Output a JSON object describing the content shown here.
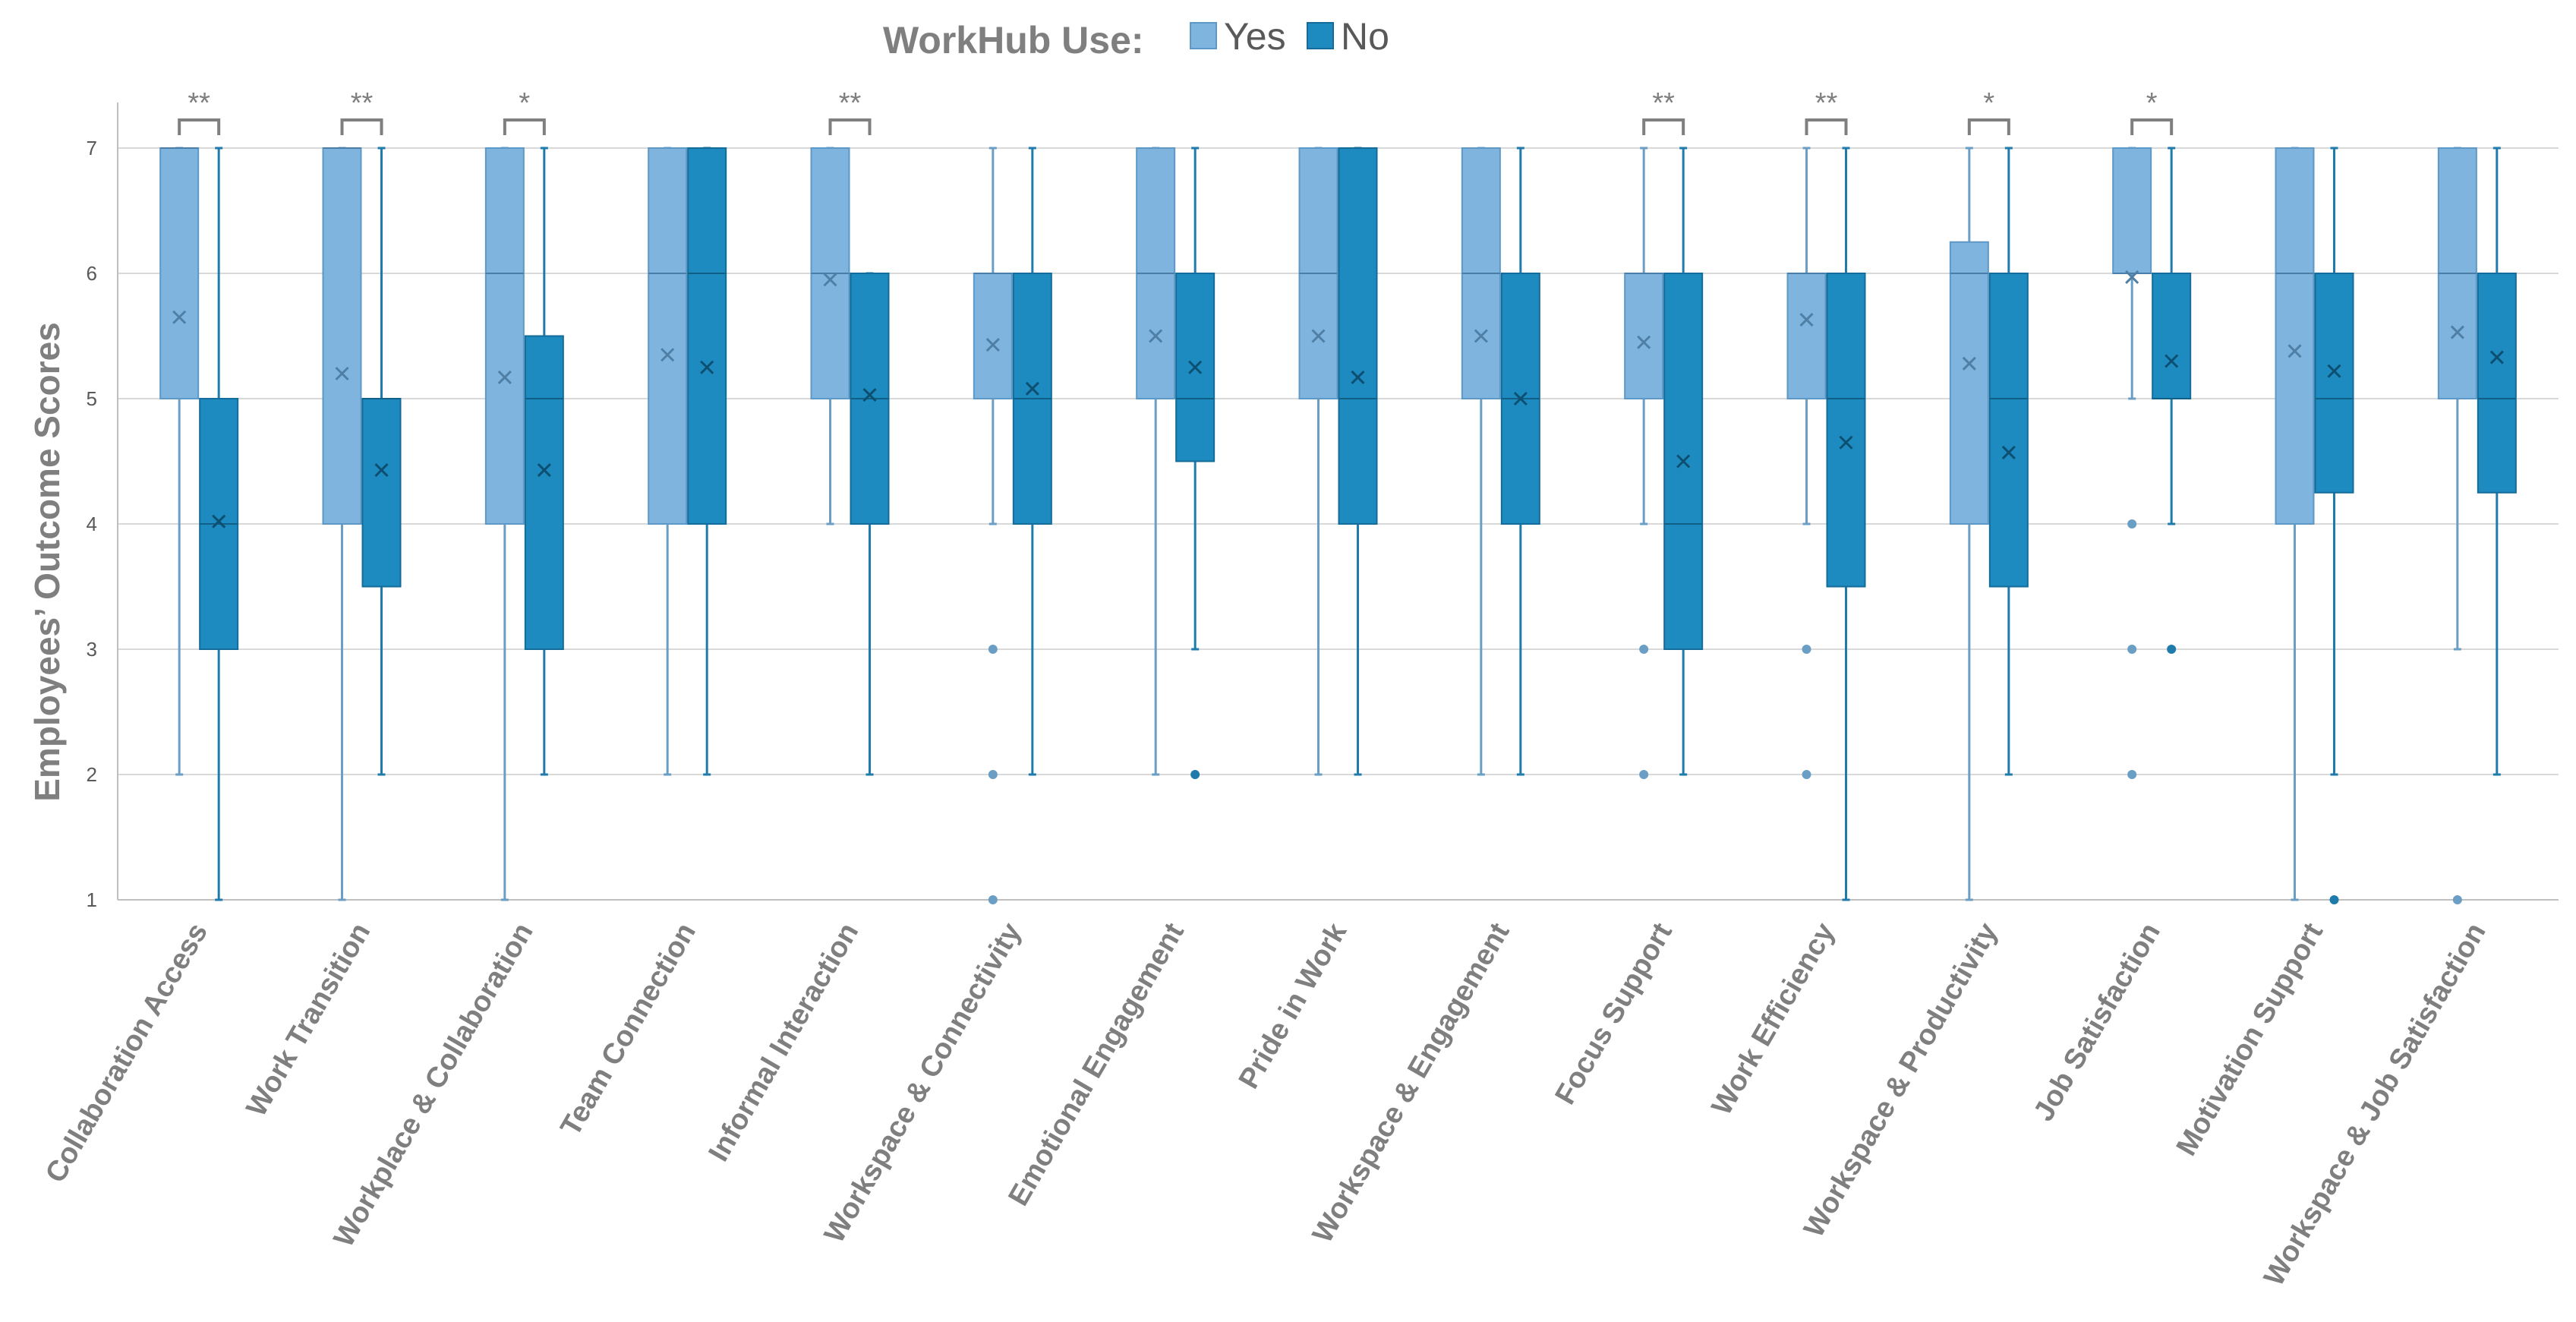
{
  "chart_data": {
    "type": "box",
    "title": "",
    "legend": {
      "title": "WorkHub Use:",
      "position": "top-center",
      "entries": [
        {
          "name": "Yes",
          "color": "#7fb4df"
        },
        {
          "name": "No",
          "color": "#1d8ac0"
        }
      ]
    },
    "xlabel": "",
    "ylabel": "Employees’ Outcome Scores",
    "ylim": [
      1,
      7
    ],
    "yticks": [
      "1",
      "2",
      "3",
      "4",
      "5",
      "6",
      "7"
    ],
    "grid": true,
    "categories": [
      "Collaboration Access",
      "Work Transition",
      "Workplace & Collaboration",
      "Team Connection",
      "Informal Interaction",
      "Workspace & Connectivity",
      "Emotional Engagement",
      "Pride in Work",
      "Workspace & Engagement",
      "Focus Support",
      "Work Efficiency",
      "Workspace & Productivity",
      "Job Satisfaction",
      "Motivation Support",
      "Workspace & Job Satisfaction"
    ],
    "significance": [
      "**",
      "**",
      "*",
      "",
      "**",
      "",
      "",
      "",
      "",
      "**",
      "**",
      "*",
      "*",
      "",
      ""
    ],
    "series": [
      {
        "name": "Yes",
        "boxes": [
          {
            "whisker_low": 2,
            "q1": 5,
            "median": 7,
            "q3": 7,
            "whisker_high": 7,
            "mean": 5.65,
            "outliers": []
          },
          {
            "whisker_low": 1,
            "q1": 4,
            "median": 7,
            "q3": 7,
            "whisker_high": 7,
            "mean": 5.2,
            "outliers": []
          },
          {
            "whisker_low": 1,
            "q1": 4,
            "median": 6,
            "q3": 7,
            "whisker_high": 7,
            "mean": 5.17,
            "outliers": []
          },
          {
            "whisker_low": 2,
            "q1": 4,
            "median": 6,
            "q3": 7,
            "whisker_high": 7,
            "mean": 5.35,
            "outliers": []
          },
          {
            "whisker_low": 4,
            "q1": 5,
            "median": 6,
            "q3": 7,
            "whisker_high": 7,
            "mean": 5.95,
            "outliers": []
          },
          {
            "whisker_low": 4,
            "q1": 5,
            "median": 6,
            "q3": 6,
            "whisker_high": 7,
            "mean": 5.43,
            "outliers": [
              3,
              2,
              1
            ]
          },
          {
            "whisker_low": 2,
            "q1": 5,
            "median": 6,
            "q3": 7,
            "whisker_high": 7,
            "mean": 5.5,
            "outliers": []
          },
          {
            "whisker_low": 2,
            "q1": 5,
            "median": 6,
            "q3": 7,
            "whisker_high": 7,
            "mean": 5.5,
            "outliers": []
          },
          {
            "whisker_low": 2,
            "q1": 5,
            "median": 6,
            "q3": 7,
            "whisker_high": 7,
            "mean": 5.5,
            "outliers": []
          },
          {
            "whisker_low": 4,
            "q1": 5,
            "median": 6,
            "q3": 6,
            "whisker_high": 7,
            "mean": 5.45,
            "outliers": [
              3,
              2
            ]
          },
          {
            "whisker_low": 4,
            "q1": 5,
            "median": 6,
            "q3": 6,
            "whisker_high": 7,
            "mean": 5.63,
            "outliers": [
              3,
              2
            ]
          },
          {
            "whisker_low": 1,
            "q1": 4,
            "median": 6,
            "q3": 6.25,
            "whisker_high": 7,
            "mean": 5.28,
            "outliers": []
          },
          {
            "whisker_low": 5,
            "q1": 6,
            "median": 6,
            "q3": 7,
            "whisker_high": 7,
            "mean": 5.97,
            "outliers": [
              4,
              3,
              2
            ]
          },
          {
            "whisker_low": 1,
            "q1": 4,
            "median": 6,
            "q3": 7,
            "whisker_high": 7,
            "mean": 5.38,
            "outliers": []
          },
          {
            "whisker_low": 3,
            "q1": 5,
            "median": 6,
            "q3": 7,
            "whisker_high": 7,
            "mean": 5.53,
            "outliers": [
              1
            ]
          }
        ]
      },
      {
        "name": "No",
        "boxes": [
          {
            "whisker_low": 1,
            "q1": 3,
            "median": 4,
            "q3": 5,
            "whisker_high": 7,
            "mean": 4.02,
            "outliers": []
          },
          {
            "whisker_low": 2,
            "q1": 3.5,
            "median": 5,
            "q3": 5,
            "whisker_high": 7,
            "mean": 4.43,
            "outliers": []
          },
          {
            "whisker_low": 2,
            "q1": 3,
            "median": 5,
            "q3": 5.5,
            "whisker_high": 7,
            "mean": 4.43,
            "outliers": []
          },
          {
            "whisker_low": 2,
            "q1": 4,
            "median": 6,
            "q3": 7,
            "whisker_high": 7,
            "mean": 5.25,
            "outliers": []
          },
          {
            "whisker_low": 2,
            "q1": 4,
            "median": 5,
            "q3": 6,
            "whisker_high": 6,
            "mean": 5.03,
            "outliers": []
          },
          {
            "whisker_low": 2,
            "q1": 4,
            "median": 5,
            "q3": 6,
            "whisker_high": 7,
            "mean": 5.08,
            "outliers": []
          },
          {
            "whisker_low": 3,
            "q1": 4.5,
            "median": 5,
            "q3": 6,
            "whisker_high": 7,
            "mean": 5.25,
            "outliers": [
              2
            ]
          },
          {
            "whisker_low": 2,
            "q1": 4,
            "median": 5,
            "q3": 7,
            "whisker_high": 7,
            "mean": 5.17,
            "outliers": []
          },
          {
            "whisker_low": 2,
            "q1": 4,
            "median": 5,
            "q3": 6,
            "whisker_high": 7,
            "mean": 5.0,
            "outliers": []
          },
          {
            "whisker_low": 2,
            "q1": 3,
            "median": 4,
            "q3": 6,
            "whisker_high": 7,
            "mean": 4.5,
            "outliers": []
          },
          {
            "whisker_low": 1,
            "q1": 3.5,
            "median": 5,
            "q3": 6,
            "whisker_high": 7,
            "mean": 4.65,
            "outliers": []
          },
          {
            "whisker_low": 2,
            "q1": 3.5,
            "median": 5,
            "q3": 6,
            "whisker_high": 7,
            "mean": 4.57,
            "outliers": []
          },
          {
            "whisker_low": 4,
            "q1": 5,
            "median": 5,
            "q3": 6,
            "whisker_high": 7,
            "mean": 5.3,
            "outliers": [
              3
            ]
          },
          {
            "whisker_low": 2,
            "q1": 4.25,
            "median": 5,
            "q3": 6,
            "whisker_high": 7,
            "mean": 5.22,
            "outliers": [
              1
            ]
          },
          {
            "whisker_low": 2,
            "q1": 4.25,
            "median": 5,
            "q3": 6,
            "whisker_high": 7,
            "mean": 5.33,
            "outliers": []
          }
        ]
      }
    ]
  }
}
